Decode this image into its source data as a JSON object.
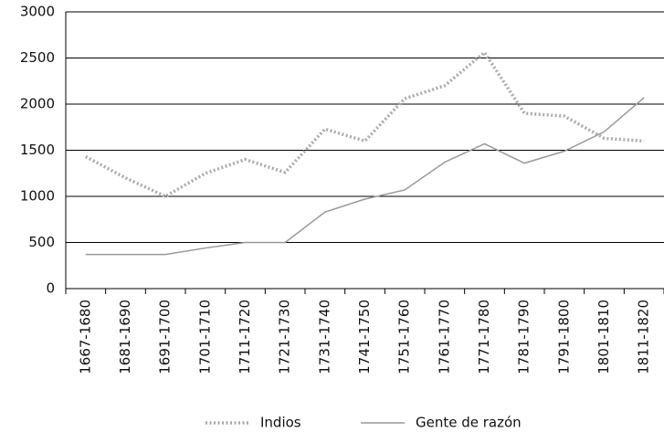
{
  "chart_data": {
    "type": "line",
    "categories": [
      "1667-1680",
      "1681-1690",
      "1691-1700",
      "1701-1710",
      "1711-1720",
      "1721-1730",
      "1731-1740",
      "1741-1750",
      "1751-1760",
      "1761-1770",
      "1771-1780",
      "1781-1790",
      "1791-1800",
      "1801-1810",
      "1811-1820"
    ],
    "series": [
      {
        "name": "Indios",
        "color": "#aaaaaa",
        "dashed": true,
        "values": [
          1430,
          1200,
          1000,
          1250,
          1400,
          1260,
          1730,
          1600,
          2060,
          2200,
          2560,
          1900,
          1870,
          1630,
          1600
        ]
      },
      {
        "name": "Gente de razón",
        "color": "#999999",
        "dashed": false,
        "values": [
          370,
          370,
          370,
          440,
          500,
          500,
          830,
          970,
          1070,
          1370,
          1570,
          1360,
          1490,
          1700,
          2070
        ]
      }
    ],
    "ylim": [
      0,
      3000
    ],
    "yticks": [
      0,
      500,
      1000,
      1500,
      2000,
      2500,
      3000
    ],
    "grid": true,
    "legend": "bottom"
  }
}
